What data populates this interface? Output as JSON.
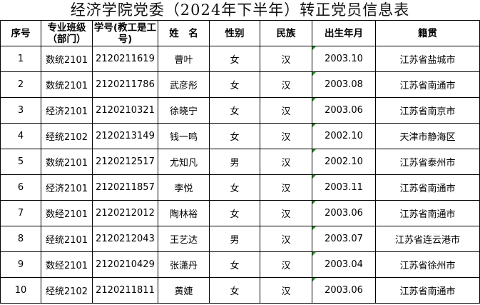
{
  "title": "经济学院党委（2024年下半年）转正党员信息表",
  "headers": [
    "序号",
    "专业班级（部门）",
    "学号(教工是工号)",
    "姓　名",
    "性别",
    "民族",
    "出生年月",
    "籍贯"
  ],
  "rows": [
    [
      "1",
      "数统2101",
      "2120211619",
      "曹叶",
      "女",
      "汉",
      "2003.10",
      "江苏省盐城市"
    ],
    [
      "2",
      "数统2101",
      "2120211786",
      "武彦彤",
      "女",
      "汉",
      "2003.08",
      "江苏省南通市"
    ],
    [
      "3",
      "经济2101",
      "2120210321",
      "徐晓宁",
      "女",
      "汉",
      "2003.06",
      "江苏省南京市"
    ],
    [
      "4",
      "经统2102",
      "2120213149",
      "钱一鸣",
      "女",
      "汉",
      "2002.10",
      "天津市静海区"
    ],
    [
      "5",
      "数统2101",
      "2120212517",
      "尤知凡",
      "男",
      "汉",
      "2002.10",
      "江苏省泰州市"
    ],
    [
      "6",
      "经济2101",
      "2120211857",
      "李悦",
      "女",
      "汉",
      "2003.11",
      "江苏省南通市"
    ],
    [
      "7",
      "数经2101",
      "2120212012",
      "陶林裕",
      "女",
      "汉",
      "2003.06",
      "江苏省南通市"
    ],
    [
      "8",
      "经统2101",
      "2120212043",
      "王艺达",
      "男",
      "汉",
      "2003.07",
      "江苏省连云港市"
    ],
    [
      "9",
      "数经2101",
      "2120210429",
      "张潇丹",
      "女",
      "汉",
      "2003.04",
      "江苏省徐州市"
    ],
    [
      "10",
      "经统2102",
      "2120211811",
      "黄婕",
      "女",
      "汉",
      "2003.06",
      "江苏省南通市"
    ]
  ]
}
